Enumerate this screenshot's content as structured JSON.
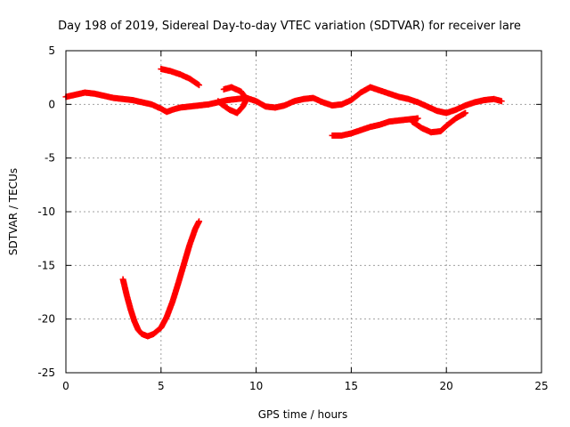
{
  "chart_data": {
    "type": "scatter",
    "title": "Day 198 of 2019, Sidereal Day-to-day VTEC variation (SDTVAR) for receiver lare",
    "xlabel": "GPS time / hours",
    "ylabel": "SDTVAR / TECUs",
    "xlim": [
      0,
      25
    ],
    "ylim": [
      -25,
      5
    ],
    "xticks": [
      0,
      5,
      10,
      15,
      20,
      25
    ],
    "yticks": [
      -25,
      -20,
      -15,
      -10,
      -5,
      0,
      5
    ],
    "grid": true,
    "marker": "plus",
    "color": "#ff0000",
    "series": [
      {
        "name": "track-main",
        "points": [
          [
            0,
            0.7
          ],
          [
            0.5,
            0.9
          ],
          [
            1,
            1.1
          ],
          [
            1.5,
            1.0
          ],
          [
            2,
            0.8
          ],
          [
            2.5,
            0.6
          ],
          [
            3,
            0.5
          ],
          [
            3.5,
            0.4
          ],
          [
            4,
            0.2
          ],
          [
            4.5,
            0.0
          ],
          [
            5,
            -0.4
          ],
          [
            5.3,
            -0.7
          ],
          [
            5.6,
            -0.5
          ],
          [
            6,
            -0.3
          ],
          [
            6.5,
            -0.2
          ],
          [
            7,
            -0.1
          ],
          [
            7.5,
            0.0
          ],
          [
            8,
            0.2
          ],
          [
            8.5,
            0.4
          ],
          [
            9,
            0.5
          ],
          [
            9.5,
            0.6
          ],
          [
            10,
            0.3
          ],
          [
            10.5,
            -0.2
          ],
          [
            11,
            -0.3
          ],
          [
            11.5,
            -0.1
          ],
          [
            12,
            0.3
          ],
          [
            12.5,
            0.5
          ],
          [
            13,
            0.6
          ],
          [
            13.5,
            0.2
          ],
          [
            14,
            -0.1
          ],
          [
            14.5,
            0.0
          ],
          [
            15,
            0.4
          ],
          [
            15.5,
            1.1
          ],
          [
            16,
            1.6
          ],
          [
            16.5,
            1.3
          ],
          [
            17,
            1.0
          ],
          [
            17.5,
            0.7
          ],
          [
            18,
            0.5
          ],
          [
            18.5,
            0.2
          ],
          [
            19,
            -0.2
          ],
          [
            19.5,
            -0.6
          ],
          [
            20,
            -0.8
          ],
          [
            20.5,
            -0.5
          ],
          [
            21,
            -0.1
          ],
          [
            21.5,
            0.2
          ],
          [
            22,
            0.4
          ],
          [
            22.5,
            0.5
          ],
          [
            22.9,
            0.3
          ]
        ]
      },
      {
        "name": "track-upper-arc",
        "points": [
          [
            5,
            3.3
          ],
          [
            5.5,
            3.1
          ],
          [
            6,
            2.8
          ],
          [
            6.5,
            2.4
          ],
          [
            7,
            1.8
          ]
        ]
      },
      {
        "name": "track-loop",
        "points": [
          [
            8.3,
            1.4
          ],
          [
            8.7,
            1.6
          ],
          [
            9.2,
            1.2
          ],
          [
            9.5,
            0.5
          ],
          [
            9.3,
            -0.2
          ],
          [
            9,
            -0.8
          ],
          [
            8.6,
            -0.5
          ],
          [
            8.2,
            0.0
          ],
          [
            8,
            0.3
          ]
        ]
      },
      {
        "name": "track-lower",
        "points": [
          [
            14,
            -2.9
          ],
          [
            14.5,
            -2.9
          ],
          [
            15,
            -2.7
          ],
          [
            15.5,
            -2.4
          ],
          [
            16,
            -2.1
          ],
          [
            16.5,
            -1.9
          ],
          [
            17,
            -1.6
          ],
          [
            17.5,
            -1.5
          ],
          [
            18,
            -1.4
          ],
          [
            18.5,
            -1.3
          ],
          [
            18.2,
            -1.6
          ],
          [
            18.7,
            -2.2
          ],
          [
            19.2,
            -2.6
          ],
          [
            19.7,
            -2.5
          ],
          [
            20,
            -2.0
          ],
          [
            20.5,
            -1.3
          ],
          [
            21,
            -0.8
          ]
        ]
      },
      {
        "name": "track-dip",
        "points": [
          [
            3,
            -16.3
          ],
          [
            3.2,
            -17.8
          ],
          [
            3.4,
            -19.1
          ],
          [
            3.6,
            -20.2
          ],
          [
            3.8,
            -21.0
          ],
          [
            4,
            -21.4
          ],
          [
            4.3,
            -21.6
          ],
          [
            4.6,
            -21.4
          ],
          [
            5,
            -20.8
          ],
          [
            5.3,
            -19.8
          ],
          [
            5.6,
            -18.4
          ],
          [
            5.9,
            -16.7
          ],
          [
            6.2,
            -14.9
          ],
          [
            6.5,
            -13.1
          ],
          [
            6.8,
            -11.6
          ],
          [
            7,
            -10.9
          ]
        ]
      }
    ]
  }
}
